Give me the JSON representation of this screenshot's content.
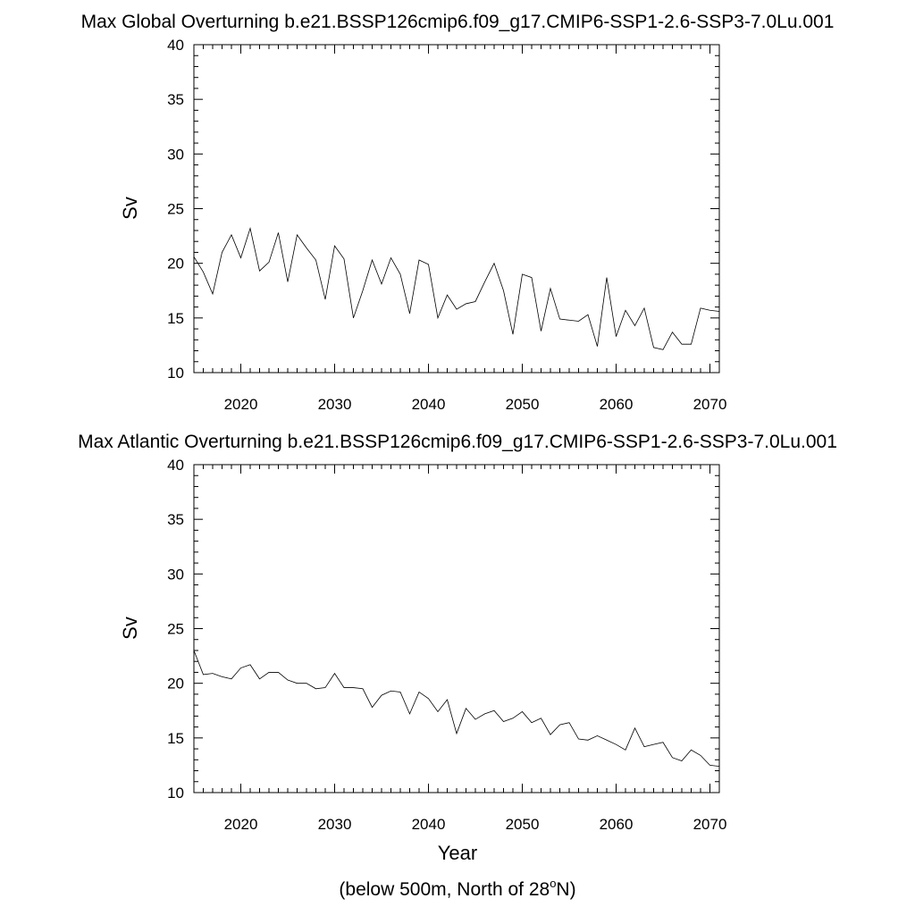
{
  "chart_data": [
    {
      "type": "line",
      "title": "Max Global Overturning b.e21.BSSP126cmip6.f09_g17.CMIP6-SSP1-2.6-SSP3-7.0Lu.001",
      "xlabel": "",
      "ylabel": "Sv",
      "xlim": [
        2015,
        2071
      ],
      "ylim": [
        10,
        40
      ],
      "x_ticks": [
        2020,
        2030,
        2040,
        2050,
        2060,
        2070
      ],
      "y_ticks": [
        10,
        15,
        20,
        25,
        30,
        35,
        40
      ],
      "grid": false,
      "series": [
        {
          "name": "Max Global Overturning",
          "x": [
            2015,
            2016,
            2017,
            2018,
            2019,
            2020,
            2021,
            2022,
            2023,
            2024,
            2025,
            2026,
            2027,
            2028,
            2029,
            2030,
            2031,
            2032,
            2033,
            2034,
            2035,
            2036,
            2037,
            2038,
            2039,
            2040,
            2041,
            2042,
            2043,
            2044,
            2045,
            2046,
            2047,
            2048,
            2049,
            2050,
            2051,
            2052,
            2053,
            2054,
            2055,
            2056,
            2057,
            2058,
            2059,
            2060,
            2061,
            2062,
            2063,
            2064,
            2065,
            2066,
            2067,
            2068,
            2069,
            2070,
            2071
          ],
          "values": [
            20.6,
            19.2,
            17.2,
            21.0,
            22.6,
            20.5,
            23.2,
            19.3,
            20.1,
            22.8,
            18.3,
            22.6,
            21.4,
            20.3,
            16.7,
            21.6,
            20.4,
            15.0,
            17.5,
            20.3,
            18.1,
            20.5,
            19.0,
            15.4,
            20.3,
            19.9,
            15.0,
            17.1,
            15.8,
            16.3,
            16.5,
            18.3,
            20.0,
            17.5,
            13.5,
            19.0,
            18.7,
            13.8,
            17.7,
            14.9,
            14.8,
            14.7,
            15.3,
            12.4,
            18.7,
            13.3,
            15.7,
            14.3,
            15.9,
            12.3,
            12.1,
            13.7,
            12.6,
            12.6,
            15.9,
            15.7,
            15.6
          ]
        }
      ]
    },
    {
      "type": "line",
      "title": "Max Atlantic Overturning b.e21.BSSP126cmip6.f09_g17.CMIP6-SSP1-2.6-SSP3-7.0Lu.001",
      "xlabel": "Year",
      "ylabel": "Sv",
      "xlim": [
        2015,
        2071
      ],
      "ylim": [
        10,
        40
      ],
      "x_ticks": [
        2020,
        2030,
        2040,
        2050,
        2060,
        2070
      ],
      "y_ticks": [
        10,
        15,
        20,
        25,
        30,
        35,
        40
      ],
      "grid": false,
      "series": [
        {
          "name": "Max Atlantic Overturning",
          "x": [
            2015,
            2016,
            2017,
            2018,
            2019,
            2020,
            2021,
            2022,
            2023,
            2024,
            2025,
            2026,
            2027,
            2028,
            2029,
            2030,
            2031,
            2032,
            2033,
            2034,
            2035,
            2036,
            2037,
            2038,
            2039,
            2040,
            2041,
            2042,
            2043,
            2044,
            2045,
            2046,
            2047,
            2048,
            2049,
            2050,
            2051,
            2052,
            2053,
            2054,
            2055,
            2056,
            2057,
            2058,
            2059,
            2060,
            2061,
            2062,
            2063,
            2064,
            2065,
            2066,
            2067,
            2068,
            2069,
            2070,
            2071
          ],
          "values": [
            23.0,
            20.8,
            20.9,
            20.6,
            20.4,
            21.4,
            21.7,
            20.4,
            21.0,
            21.0,
            20.3,
            20.0,
            20.0,
            19.5,
            19.6,
            20.9,
            19.6,
            19.6,
            19.5,
            17.8,
            18.9,
            19.3,
            19.2,
            17.2,
            19.2,
            18.6,
            17.4,
            18.5,
            15.4,
            17.7,
            16.7,
            17.2,
            17.5,
            16.5,
            16.8,
            17.4,
            16.4,
            16.8,
            15.3,
            16.2,
            16.4,
            14.9,
            14.8,
            15.2,
            14.8,
            14.4,
            13.9,
            15.9,
            14.2,
            14.4,
            14.6,
            13.2,
            12.9,
            13.9,
            13.4,
            12.5,
            12.4
          ]
        }
      ]
    }
  ],
  "footnote": {
    "prefix": "(below 500m, North of 28",
    "superscript": "o",
    "suffix": "N)"
  },
  "colors": {
    "line": "#000000",
    "axes": "#000000",
    "background": "#ffffff"
  }
}
